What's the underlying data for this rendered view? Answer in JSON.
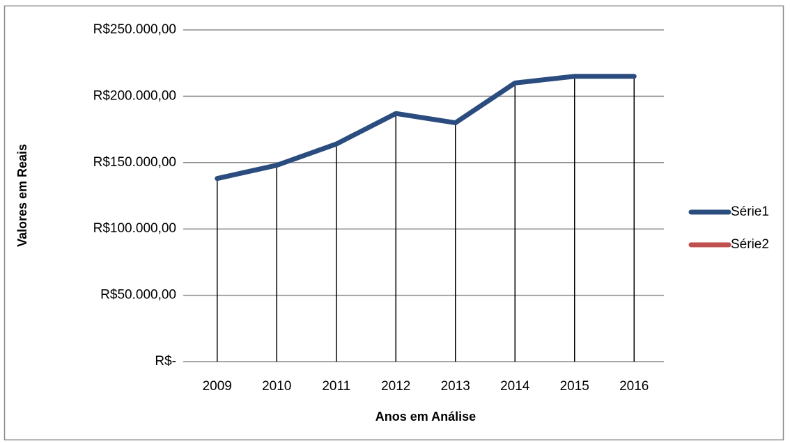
{
  "chart_data": {
    "type": "line",
    "x_label": "Anos em Análise",
    "y_label": "Valores em Reais",
    "categories": [
      "2009",
      "2010",
      "2011",
      "2012",
      "2013",
      "2014",
      "2015",
      "2016"
    ],
    "series": [
      {
        "name": "Série1",
        "color": "#2b4c7e",
        "values": [
          138000,
          148000,
          164000,
          187000,
          180000,
          210000,
          215000,
          215000
        ]
      },
      {
        "name": "Série2",
        "color": "#c0504d",
        "values": [
          null,
          null,
          null,
          null,
          null,
          null,
          null,
          null
        ]
      }
    ],
    "ylim": [
      0,
      250000
    ],
    "yticks": [
      {
        "value": 0,
        "label": "R$-"
      },
      {
        "value": 50000,
        "label": "R$50.000,00"
      },
      {
        "value": 100000,
        "label": "R$100.000,00"
      },
      {
        "value": 150000,
        "label": "R$150.000,00"
      },
      {
        "value": 200000,
        "label": "R$200.000,00"
      },
      {
        "value": 250000,
        "label": "R$250.000,00"
      }
    ],
    "grid": true,
    "drop_lines": true,
    "legend": "right"
  }
}
